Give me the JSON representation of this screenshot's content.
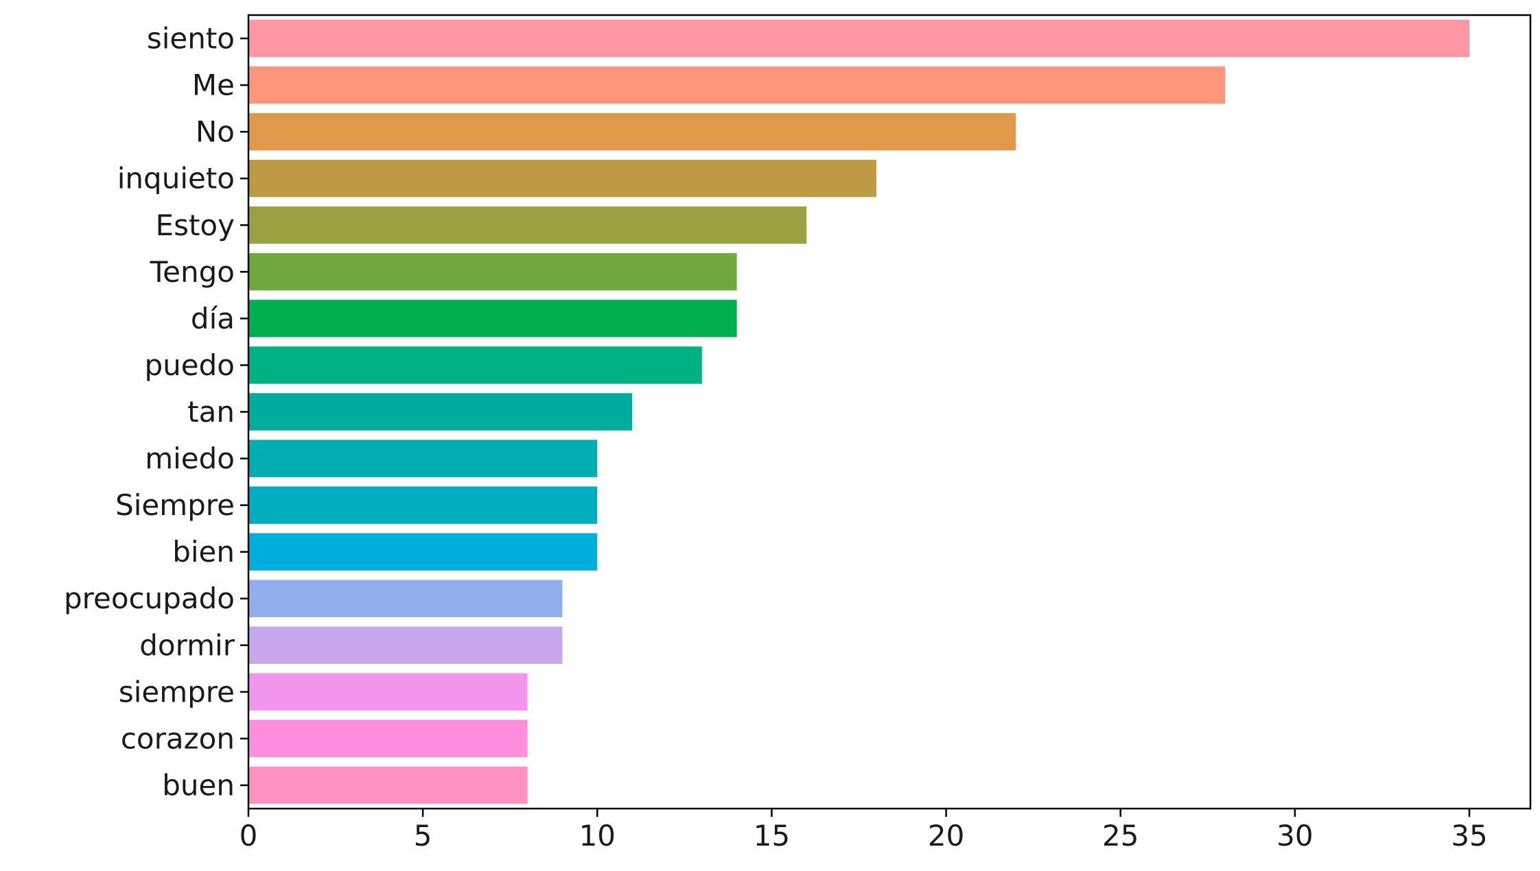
{
  "chart_data": {
    "type": "bar",
    "orientation": "horizontal",
    "title": "",
    "xlabel": "",
    "ylabel": "",
    "categories": [
      "siento",
      "Me",
      "No",
      "inquieto",
      "Estoy",
      "Tengo",
      "día",
      "puedo",
      "tan",
      "miedo",
      "Siempre",
      "bien",
      "preocupado",
      "dormir",
      "siempre",
      "corazon",
      "buen"
    ],
    "values": [
      35,
      28,
      22,
      18,
      16,
      14,
      14,
      13,
      11,
      10,
      10,
      10,
      9,
      9,
      8,
      8,
      8
    ],
    "colors": [
      "#ff97a5",
      "#ff967a",
      "#e0994a",
      "#bf9a44",
      "#9ba040",
      "#71a83e",
      "#00af4d",
      "#00b184",
      "#00ac9e",
      "#00adb1",
      "#00aec0",
      "#00aedc",
      "#91afec",
      "#c8a7ec",
      "#f196ec",
      "#ff8fde",
      "#ff92c2"
    ],
    "xlim": [
      0,
      36.75
    ],
    "xticks": [
      0,
      5,
      10,
      15,
      20,
      25,
      30,
      35
    ],
    "xtick_labels": [
      "0",
      "5",
      "10",
      "15",
      "20",
      "25",
      "30",
      "35"
    ],
    "grid": false,
    "legend": false
  }
}
